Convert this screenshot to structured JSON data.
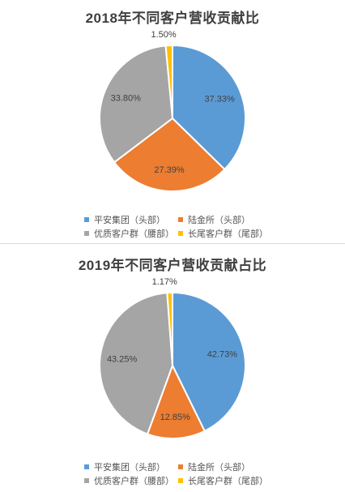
{
  "chart_data": [
    {
      "type": "pie",
      "title": "2018年不同客户营收贡献比",
      "series": [
        {
          "name": "平安集团（头部）",
          "value": 37.33,
          "label": "37.33%",
          "color": "#5b9bd5"
        },
        {
          "name": "陆金所（头部）",
          "value": 27.39,
          "label": "27.39%",
          "color": "#ed7d31"
        },
        {
          "name": "优质客户群（腰部）",
          "value": 33.8,
          "label": "33.80%",
          "color": "#a5a5a5"
        },
        {
          "name": "长尾客户群（尾部）",
          "value": 1.5,
          "label": "1.50%",
          "color": "#ffc000"
        }
      ],
      "legend": "bottom"
    },
    {
      "type": "pie",
      "title": "2019年不同客户营收贡献占比",
      "series": [
        {
          "name": "平安集团（头部）",
          "value": 42.73,
          "label": "42.73%",
          "color": "#5b9bd5"
        },
        {
          "name": "陆金所（头部）",
          "value": 12.85,
          "label": "12.85%",
          "color": "#ed7d31"
        },
        {
          "name": "优质客户群（腰部）",
          "value": 43.25,
          "label": "43.25%",
          "color": "#a5a5a5"
        },
        {
          "name": "长尾客户群（尾部）",
          "value": 1.17,
          "label": "1.17%",
          "color": "#ffc000"
        }
      ],
      "legend": "bottom"
    }
  ]
}
